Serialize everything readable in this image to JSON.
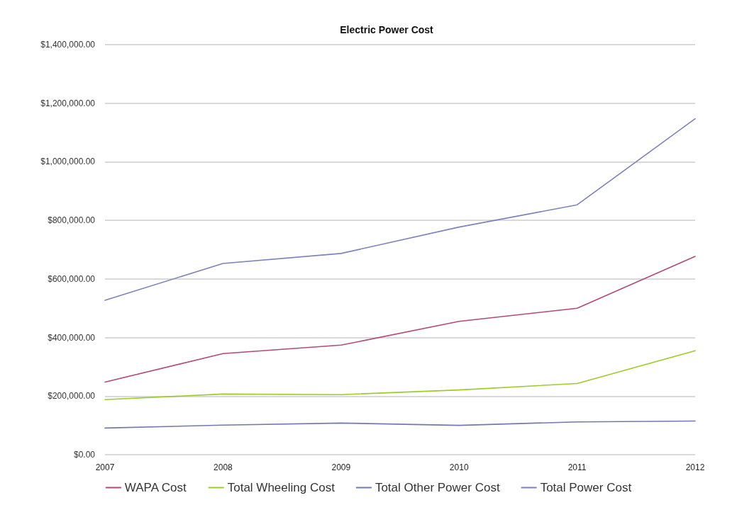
{
  "chart_data": {
    "type": "line",
    "title": "Electric Power Cost",
    "categories": [
      "2007",
      "2008",
      "2009",
      "2010",
      "2011",
      "2012"
    ],
    "series": [
      {
        "name": "WAPA Cost",
        "color": "#b04a7a",
        "values": [
          248000,
          345000,
          374000,
          455000,
          500000,
          677000
        ]
      },
      {
        "name": "Total Wheeling Cost",
        "color": "#9ccc2a",
        "values": [
          188000,
          207000,
          205000,
          221000,
          243000,
          355000
        ]
      },
      {
        "name": "Total Other Power Cost",
        "color": "#7478b0",
        "values": [
          91000,
          101000,
          108000,
          100000,
          112000,
          115000
        ]
      },
      {
        "name": "Total Power Cost",
        "color": "#7c82ba",
        "values": [
          527000,
          653000,
          687000,
          777000,
          853000,
          1147000
        ]
      }
    ],
    "ylim": [
      0,
      1400000
    ],
    "yticks": [
      {
        "value": 0,
        "label": "$0.00"
      },
      {
        "value": 200000,
        "label": "$200,000.00"
      },
      {
        "value": 400000,
        "label": "$400,000.00"
      },
      {
        "value": 600000,
        "label": "$600,000.00"
      },
      {
        "value": 800000,
        "label": "$800,000.00"
      },
      {
        "value": 1000000,
        "label": "$1,000,000.00"
      },
      {
        "value": 1200000,
        "label": "$1,200,000.00"
      },
      {
        "value": 1400000,
        "label": "$1,400,000.00"
      }
    ],
    "grid": "y",
    "legend": "bottom",
    "marker": "none",
    "line_style": "solid"
  }
}
